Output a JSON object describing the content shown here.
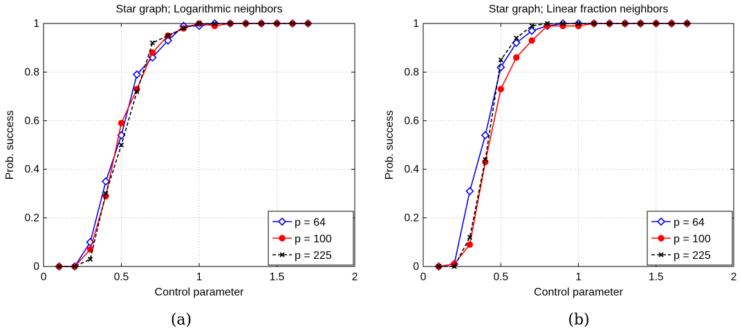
{
  "chart_data": [
    {
      "type": "line",
      "title": "Star graph; Logarithmic neighbors",
      "xlabel": "Control parameter",
      "ylabel": "Prob. success",
      "xlim": [
        0,
        2
      ],
      "ylim": [
        0,
        1
      ],
      "xticks": [
        "0",
        "0.5",
        "1",
        "1.5",
        "2"
      ],
      "yticks": [
        "0",
        "0.2",
        "0.4",
        "0.6",
        "0.8",
        "1"
      ],
      "grid": true,
      "legend": "bottom-right",
      "caption": "(a)",
      "series": [
        {
          "name": "p =  64",
          "color": "#0000ff",
          "marker": "diamond",
          "dash": "solid",
          "x": [
            0.1,
            0.2,
            0.3,
            0.4,
            0.5,
            0.6,
            0.7,
            0.8,
            0.9,
            1.0,
            1.1,
            1.2,
            1.3,
            1.4,
            1.5,
            1.6,
            1.7
          ],
          "y": [
            0,
            0,
            0.1,
            0.35,
            0.54,
            0.79,
            0.86,
            0.93,
            0.99,
            0.99,
            1,
            1,
            1,
            1,
            1,
            1,
            1
          ]
        },
        {
          "name": "p = 100",
          "color": "#ff0000",
          "marker": "circle",
          "dash": "solid",
          "x": [
            0.1,
            0.2,
            0.3,
            0.4,
            0.5,
            0.6,
            0.7,
            0.8,
            0.9,
            1.0,
            1.1,
            1.2,
            1.3,
            1.4,
            1.5,
            1.6,
            1.7
          ],
          "y": [
            0,
            0,
            0.07,
            0.29,
            0.59,
            0.73,
            0.88,
            0.95,
            0.98,
            1,
            0.99,
            1,
            1,
            1,
            1,
            1,
            1
          ]
        },
        {
          "name": "p = 225",
          "color": "#000000",
          "marker": "x",
          "dash": "dashed",
          "x": [
            0.1,
            0.2,
            0.3,
            0.4,
            0.5,
            0.6,
            0.7,
            0.8,
            0.9,
            1.0,
            1.1,
            1.2,
            1.3,
            1.4,
            1.5,
            1.6,
            1.7
          ],
          "y": [
            0,
            0,
            0.03,
            0.3,
            0.5,
            0.72,
            0.92,
            0.95,
            0.98,
            1,
            1,
            1,
            1,
            1,
            1,
            1,
            1
          ]
        }
      ]
    },
    {
      "type": "line",
      "title": "Star graph; Linear fraction neighbors",
      "xlabel": "Control parameter",
      "ylabel": "Prob. success",
      "xlim": [
        0,
        2
      ],
      "ylim": [
        0,
        1
      ],
      "xticks": [
        "0",
        "0.5",
        "1",
        "1.5",
        "2"
      ],
      "yticks": [
        "0",
        "0.2",
        "0.4",
        "0.6",
        "0.8",
        "1"
      ],
      "grid": true,
      "legend": "bottom-right",
      "caption": "(b)",
      "series": [
        {
          "name": "p =  64",
          "color": "#0000ff",
          "marker": "diamond",
          "dash": "solid",
          "x": [
            0.1,
            0.2,
            0.3,
            0.4,
            0.5,
            0.6,
            0.7,
            0.8,
            0.9,
            1.0,
            1.1,
            1.2,
            1.3,
            1.4,
            1.5,
            1.6,
            1.7
          ],
          "y": [
            0,
            0.01,
            0.31,
            0.54,
            0.82,
            0.92,
            0.97,
            0.99,
            1,
            1,
            1,
            1,
            1,
            1,
            1,
            1,
            1
          ]
        },
        {
          "name": "p = 100",
          "color": "#ff0000",
          "marker": "circle",
          "dash": "solid",
          "x": [
            0.1,
            0.2,
            0.3,
            0.4,
            0.5,
            0.6,
            0.7,
            0.8,
            0.9,
            1.0,
            1.1,
            1.2,
            1.3,
            1.4,
            1.5,
            1.6,
            1.7
          ],
          "y": [
            0,
            0.01,
            0.09,
            0.43,
            0.73,
            0.86,
            0.93,
            0.99,
            0.99,
            0.99,
            1,
            1,
            1,
            1,
            1,
            1,
            1
          ]
        },
        {
          "name": "p = 225",
          "color": "#000000",
          "marker": "x",
          "dash": "dashed",
          "x": [
            0.1,
            0.2,
            0.3,
            0.4,
            0.5,
            0.6,
            0.7,
            0.8,
            0.9,
            1.0,
            1.1,
            1.2,
            1.3,
            1.4,
            1.5,
            1.6,
            1.7
          ],
          "y": [
            0,
            0,
            0.12,
            0.44,
            0.85,
            0.94,
            0.99,
            1,
            1,
            1,
            1,
            1,
            1,
            1,
            1,
            1,
            1
          ]
        }
      ]
    }
  ]
}
